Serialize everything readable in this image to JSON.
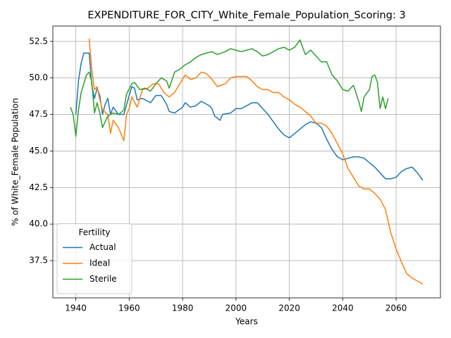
{
  "chart_data": {
    "type": "line",
    "title": "EXPENDITURE_FOR_CITY_White_Female_Population_Scoring: 3",
    "x_label": "Years",
    "y_label": "% of White_Female Population",
    "legend_title": "Fertility",
    "legend": "lower left",
    "grid": true,
    "xlim": [
      1931.4,
      2076.6
    ],
    "ylim": [
      34.95,
      53.55
    ],
    "xticks": [
      1940,
      1960,
      1980,
      2000,
      2020,
      2040,
      2060
    ],
    "yticks": [
      37.5,
      {
        "value": 40,
        "label": "40.0"
      },
      42.5,
      {
        "value": 45,
        "label": "45.0"
      },
      47.5,
      {
        "value": 50,
        "label": "50.0"
      },
      52.5
    ],
    "series": [
      {
        "name": "Actual",
        "color": "#1f77b4",
        "x": [
          1940,
          1941,
          1942,
          1943,
          1944,
          1945,
          1946,
          1947,
          1948,
          1949,
          1950,
          1951,
          1952,
          1953,
          1954,
          1956,
          1958,
          1960,
          1961,
          1962,
          1963,
          1965,
          1968,
          1970,
          1972,
          1974,
          1975,
          1977,
          1980,
          1981,
          1983,
          1985,
          1987,
          1990,
          1991,
          1992,
          1994,
          1995,
          1998,
          2000,
          2002,
          2004,
          2006,
          2008,
          2010,
          2012,
          2014,
          2016,
          2018,
          2020,
          2022,
          2024,
          2026,
          2028,
          2030,
          2032,
          2034,
          2036,
          2038,
          2040,
          2042,
          2044,
          2046,
          2048,
          2050,
          2052,
          2054,
          2056,
          2058,
          2060,
          2062,
          2064,
          2066,
          2068,
          2070
        ],
        "values": [
          47.5,
          49.8,
          51.0,
          51.7,
          51.7,
          51.7,
          49.5,
          48.6,
          49.3,
          48.8,
          47.5,
          48.2,
          48.6,
          47.5,
          48.0,
          47.5,
          47.5,
          48.8,
          49.4,
          49.3,
          48.5,
          48.6,
          48.3,
          48.8,
          48.8,
          48.2,
          47.7,
          47.6,
          48.0,
          48.3,
          48.0,
          48.1,
          48.4,
          48.1,
          47.9,
          47.4,
          47.1,
          47.5,
          47.6,
          47.9,
          47.9,
          48.1,
          48.3,
          48.3,
          47.9,
          47.5,
          47.0,
          46.5,
          46.1,
          45.9,
          46.2,
          46.5,
          46.8,
          47.0,
          46.9,
          46.6,
          45.8,
          45.1,
          44.6,
          44.4,
          44.5,
          44.6,
          44.6,
          44.5,
          44.2,
          43.9,
          43.5,
          43.1,
          43.1,
          43.2,
          43.6,
          43.8,
          43.9,
          43.5,
          43.0
        ]
      },
      {
        "name": "Ideal",
        "color": "#ff7f0e",
        "x": [
          1945,
          1946,
          1947,
          1948,
          1949,
          1950,
          1952,
          1953,
          1954,
          1956,
          1958,
          1959,
          1960,
          1961,
          1963,
          1965,
          1967,
          1969,
          1971,
          1973,
          1975,
          1977,
          1979,
          1981,
          1983,
          1985,
          1987,
          1989,
          1991,
          1993,
          1996,
          1998,
          2000,
          2002,
          2004,
          2006,
          2008,
          2010,
          2012,
          2014,
          2016,
          2018,
          2020,
          2022,
          2024,
          2026,
          2028,
          2030,
          2032,
          2034,
          2036,
          2038,
          2040,
          2042,
          2044,
          2046,
          2048,
          2050,
          2052,
          2054,
          2056,
          2058,
          2060,
          2062,
          2064,
          2066,
          2068,
          2070
        ],
        "values": [
          52.7,
          50.6,
          49.2,
          49.4,
          48.5,
          47.8,
          47.5,
          46.2,
          47.1,
          46.6,
          45.7,
          47.5,
          47.9,
          48.7,
          48.0,
          49.2,
          49.3,
          49.6,
          49.6,
          49.0,
          48.7,
          49.0,
          49.6,
          50.2,
          49.9,
          50.0,
          50.4,
          50.3,
          49.9,
          49.4,
          49.6,
          50.0,
          50.1,
          50.1,
          50.1,
          49.8,
          49.4,
          49.2,
          49.2,
          49.0,
          49.0,
          48.7,
          48.5,
          48.2,
          48.0,
          47.7,
          47.4,
          46.9,
          46.9,
          46.7,
          46.2,
          45.5,
          44.8,
          43.8,
          43.2,
          42.6,
          42.4,
          42.4,
          42.1,
          41.7,
          41.0,
          39.4,
          38.3,
          37.4,
          36.6,
          36.3,
          36.1,
          35.9
        ]
      },
      {
        "name": "Sterile",
        "color": "#2ca02c",
        "x": [
          1938,
          1939,
          1940,
          1941,
          1942,
          1944,
          1945,
          1946,
          1947,
          1948,
          1949,
          1950,
          1952,
          1954,
          1956,
          1958,
          1959,
          1961,
          1962,
          1964,
          1966,
          1968,
          1970,
          1972,
          1974,
          1975,
          1977,
          1979,
          1981,
          1983,
          1985,
          1987,
          1989,
          1991,
          1993,
          1996,
          1998,
          2000,
          2002,
          2004,
          2006,
          2008,
          2010,
          2012,
          2014,
          2016,
          2018,
          2020,
          2022,
          2024,
          2026,
          2028,
          2030,
          2032,
          2034,
          2036,
          2038,
          2039,
          2040,
          2042,
          2044,
          2046,
          2047,
          2048,
          2050,
          2051,
          2052,
          2053,
          2054,
          2055,
          2056,
          2057
        ],
        "values": [
          48.0,
          47.5,
          46.0,
          47.8,
          49.0,
          50.2,
          50.4,
          49.7,
          47.6,
          48.3,
          47.6,
          46.6,
          47.4,
          47.6,
          47.5,
          47.8,
          48.9,
          49.6,
          49.7,
          49.2,
          49.3,
          49.1,
          49.6,
          50.0,
          49.8,
          49.3,
          50.4,
          50.6,
          50.9,
          51.1,
          51.4,
          51.6,
          51.7,
          51.8,
          51.6,
          51.8,
          52.0,
          51.9,
          51.8,
          51.9,
          52.0,
          51.8,
          51.5,
          51.6,
          51.8,
          52.0,
          52.1,
          51.9,
          52.1,
          52.6,
          51.6,
          51.9,
          51.5,
          51.1,
          51.1,
          50.2,
          49.8,
          49.5,
          49.2,
          49.1,
          49.5,
          48.4,
          47.7,
          48.7,
          49.2,
          50.1,
          50.2,
          49.7,
          47.9,
          48.7,
          47.9,
          48.6
        ]
      }
    ]
  }
}
